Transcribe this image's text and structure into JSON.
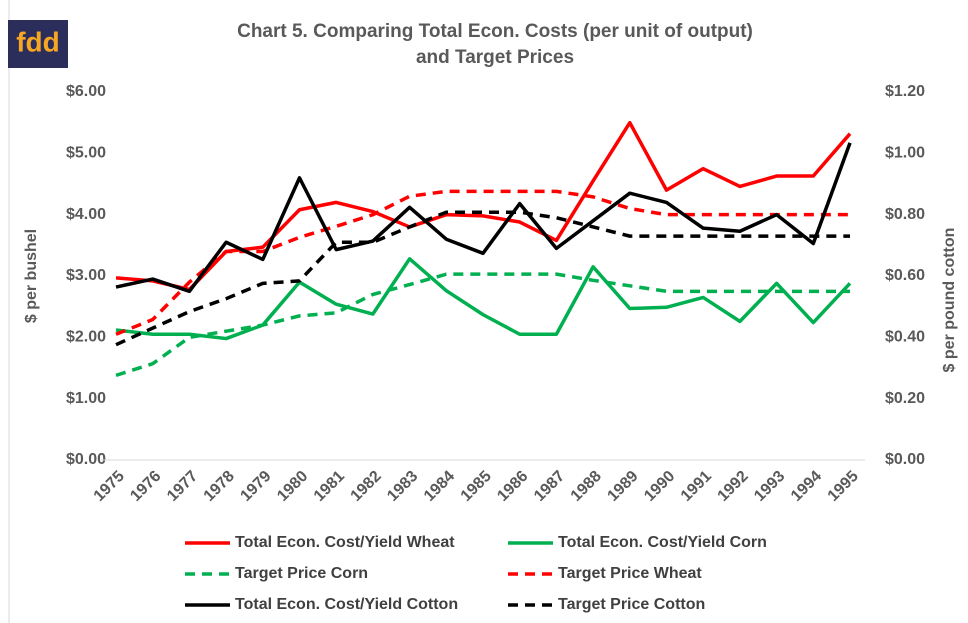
{
  "logo": "fdd",
  "chart_data": {
    "type": "line",
    "title": [
      "Chart 5. Comparing Total Econ. Costs (per unit of output)",
      "and Target Prices"
    ],
    "y_label": "$ per bushel",
    "y2_label": "$ per pound cotton",
    "categories": [
      "1975",
      "1976",
      "1977",
      "1978",
      "1979",
      "1980",
      "1981",
      "1982",
      "1983",
      "1984",
      "1985",
      "1986",
      "1987",
      "1988",
      "1989",
      "1990",
      "1991",
      "1992",
      "1993",
      "1994",
      "1995"
    ],
    "ylim": [
      0,
      6
    ],
    "yticks": [
      {
        "value": 0,
        "label": "$0.00"
      },
      {
        "value": 1,
        "label": "$1.00"
      },
      {
        "value": 2,
        "label": "$2.00"
      },
      {
        "value": 3,
        "label": "$3.00"
      },
      {
        "value": 4,
        "label": "$4.00"
      },
      {
        "value": 5,
        "label": "$5.00"
      },
      {
        "value": 6,
        "label": "$6.00"
      }
    ],
    "y2lim": [
      0,
      1.2
    ],
    "y2ticks": [
      {
        "value": 0,
        "label": "$0.00"
      },
      {
        "value": 0.2,
        "label": "$0.20"
      },
      {
        "value": 0.4,
        "label": "$0.40"
      },
      {
        "value": 0.6,
        "label": "$0.60"
      },
      {
        "value": 0.8,
        "label": "$0.80"
      },
      {
        "value": 1.0,
        "label": "$1.00"
      },
      {
        "value": 1.2,
        "label": "$1.20"
      }
    ],
    "series": [
      {
        "name": "Total Econ. Cost/Yield Wheat",
        "color": "#ff0000",
        "dash": false,
        "values": [
          2.97,
          2.92,
          2.78,
          3.4,
          3.47,
          4.08,
          4.2,
          4.05,
          3.8,
          4.0,
          3.98,
          3.88,
          3.58,
          4.55,
          5.5,
          4.4,
          4.75,
          4.46,
          4.63,
          4.63,
          5.32
        ]
      },
      {
        "name": "Total Econ. Cost/Yield Corn",
        "color": "#00b050",
        "dash": false,
        "values": [
          2.12,
          2.05,
          2.05,
          1.98,
          2.2,
          2.9,
          2.54,
          2.38,
          3.28,
          2.76,
          2.37,
          2.05,
          2.05,
          3.15,
          2.47,
          2.49,
          2.65,
          2.26,
          2.88,
          2.24,
          2.88
        ]
      },
      {
        "name": "Target Price Corn",
        "color": "#00b050",
        "dash": true,
        "values": [
          1.38,
          1.57,
          2.0,
          2.1,
          2.2,
          2.35,
          2.4,
          2.7,
          2.86,
          3.03,
          3.03,
          3.03,
          3.03,
          2.93,
          2.84,
          2.75,
          2.75,
          2.75,
          2.75,
          2.75,
          2.75
        ]
      },
      {
        "name": "Target Price Wheat",
        "color": "#ff0000",
        "dash": true,
        "values": [
          2.05,
          2.29,
          2.9,
          3.4,
          3.4,
          3.63,
          3.81,
          4.0,
          4.3,
          4.38,
          4.38,
          4.38,
          4.38,
          4.29,
          4.1,
          4.0,
          4.0,
          4.0,
          4.0,
          4.0,
          4.0
        ]
      },
      {
        "name": "Total Econ. Cost/Yield Cotton",
        "color": "#000000",
        "dash": false,
        "axis": "y2",
        "values": [
          0.564,
          0.59,
          0.55,
          0.71,
          0.654,
          0.92,
          0.686,
          0.714,
          0.824,
          0.72,
          0.674,
          0.836,
          0.69,
          0.78,
          0.87,
          0.84,
          0.756,
          0.746,
          0.8,
          0.706,
          1.034
        ]
      },
      {
        "name": "Target Price Cotton",
        "color": "#000000",
        "dash": true,
        "axis": "y2",
        "values": [
          0.376,
          0.43,
          0.484,
          0.526,
          0.576,
          0.584,
          0.71,
          0.71,
          0.76,
          0.808,
          0.808,
          0.808,
          0.79,
          0.76,
          0.73,
          0.73,
          0.73,
          0.73,
          0.73,
          0.73,
          0.73
        ]
      }
    ]
  }
}
